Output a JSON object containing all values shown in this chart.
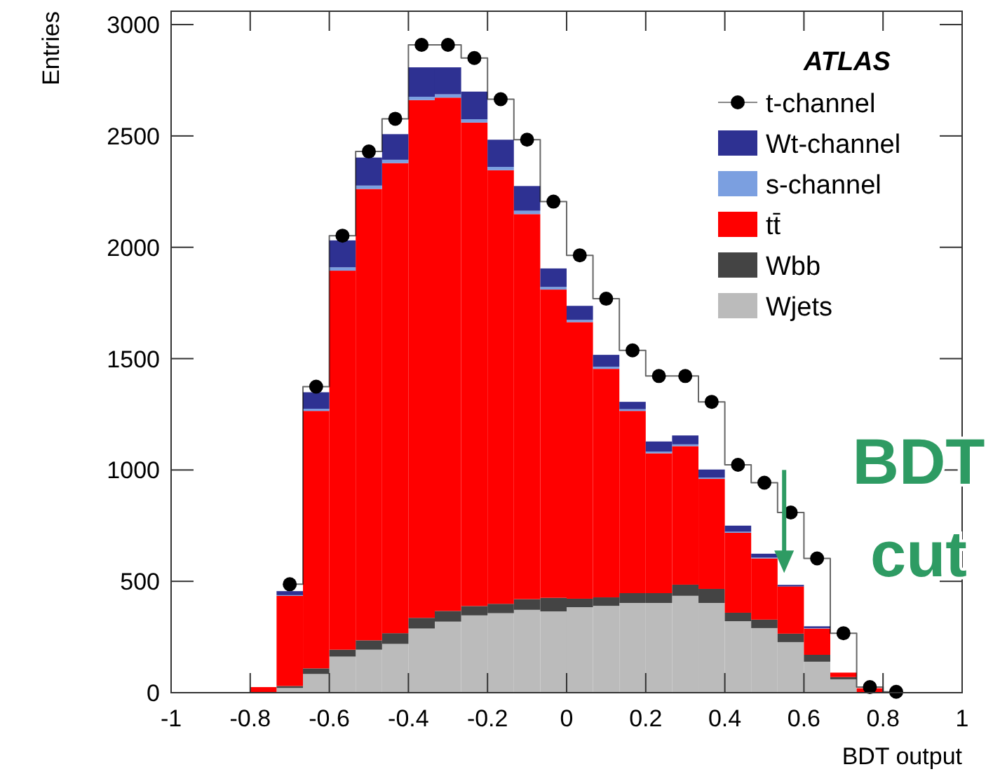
{
  "chart_data": {
    "type": "bar",
    "stacked": true,
    "x": [
      -0.7667,
      -0.7,
      -0.6333,
      -0.5667,
      -0.5,
      -0.4333,
      -0.3667,
      -0.3,
      -0.2333,
      -0.1667,
      -0.1,
      -0.0333,
      0.0333,
      0.1,
      0.1667,
      0.2333,
      0.3,
      0.3667,
      0.4333,
      0.5,
      0.5667,
      0.6333,
      0.7,
      0.7667,
      0.8333
    ],
    "xlim": [
      -1,
      1
    ],
    "xticks": [
      -1,
      -0.8,
      -0.6,
      -0.4,
      -0.2,
      0,
      0.2,
      0.4,
      0.6,
      0.8,
      1
    ],
    "ylim": [
      0,
      3060
    ],
    "yticks": [
      0,
      500,
      1000,
      1500,
      2000,
      2500,
      3000
    ],
    "xlabel": "BDT output",
    "ylabel": "Entries",
    "legend": "top right",
    "annotations": [
      "ATLAS",
      {
        "text": "BDT cut",
        "x": 0.55,
        "y": 550
      }
    ],
    "series": [
      {
        "name": "t-channel",
        "type": "step",
        "marker": "circle",
        "color": "#000000",
        "values": [
          null,
          487,
          1374,
          2052,
          2430,
          2577,
          2909,
          2909,
          2850,
          2665,
          2483,
          2205,
          1964,
          1769,
          1537,
          1422,
          1422,
          1306,
          1023,
          943,
          809,
          603,
          267,
          25,
          4
        ]
      },
      {
        "name": "Wjets",
        "color": "#bbbbbb",
        "values": [
          null,
          21,
          84,
          162,
          193,
          219,
          288,
          319,
          347,
          357,
          372,
          365,
          384,
          390,
          403,
          403,
          435,
          403,
          321,
          290,
          227,
          139,
          60,
          null,
          0
        ]
      },
      {
        "name": "Wbb",
        "color": "#444444",
        "values": [
          0,
          9,
          25,
          31,
          42,
          48,
          48,
          48,
          42,
          42,
          48,
          61,
          38,
          38,
          44,
          44,
          50,
          63,
          38,
          38,
          38,
          31,
          10,
          0,
          0
        ]
      },
      {
        "name": "tt̄",
        "color": "#ff0000",
        "values": [
          25,
          405,
          1156,
          1702,
          2027,
          2111,
          2325,
          2305,
          2171,
          1947,
          1729,
          1384,
          1242,
          1026,
          818,
          628,
          622,
          494,
          359,
          275,
          212,
          118,
          20,
          20,
          0
        ]
      },
      {
        "name": "s-channel",
        "color": "#7b9fe0",
        "values": [
          0,
          3,
          10,
          15,
          15,
          15,
          15,
          15,
          15,
          15,
          15,
          12,
          10,
          10,
          8,
          8,
          8,
          6,
          5,
          4,
          null,
          2,
          0,
          0,
          0
        ]
      },
      {
        "name": "Wt-channel",
        "color": "#2e3192",
        "values": [
          0,
          18,
          74,
          121,
          126,
          115,
          132,
          121,
          124,
          122,
          111,
          83,
          63,
          53,
          33,
          45,
          40,
          36,
          27,
          17,
          7,
          8,
          0,
          0,
          0
        ]
      }
    ]
  }
}
